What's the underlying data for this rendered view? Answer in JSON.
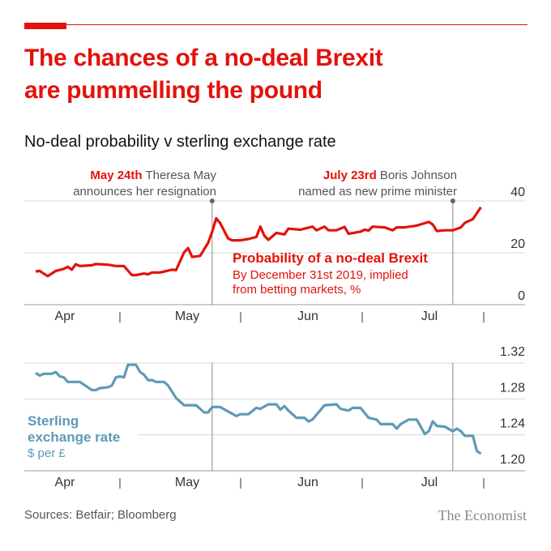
{
  "header": {
    "title_line1": "The chances of a no-deal Brexit",
    "title_line2": "are pummelling the pound",
    "subtitle": "No-deal probability v sterling exchange rate"
  },
  "footer": {
    "source": "Sources: Betfair; Bloomberg",
    "logo": "The Economist"
  },
  "colors": {
    "accent": "#e3120b",
    "sterling": "#5e9ab7",
    "grid": "#d9d9d9"
  },
  "annotations": [
    {
      "date": "2019-05-24",
      "bold": "May 24th",
      "line1": " Theresa May",
      "line2": "announces her resignation"
    },
    {
      "date": "2019-07-23",
      "bold": "July 23rd",
      "line1": " Boris Johnson",
      "line2": "named as new prime minister"
    }
  ],
  "chart_data": [
    {
      "type": "line",
      "title": "Probability of a no-deal Brexit",
      "subtitle_line1": "By December 31st 2019, implied",
      "subtitle_line2": "from betting markets, %",
      "ylim": [
        0,
        40
      ],
      "yticks": [
        "0",
        "20",
        "40"
      ],
      "xticks": [
        "Apr",
        "May",
        "Jun",
        "Jul"
      ],
      "grid": true,
      "color": "#e3120b",
      "x": [
        "2019-04-10",
        "2019-04-11",
        "2019-04-13",
        "2019-04-15",
        "2019-04-17",
        "2019-04-18",
        "2019-04-19",
        "2019-04-20",
        "2019-04-21",
        "2019-04-24",
        "2019-04-25",
        "2019-04-28",
        "2019-04-30",
        "2019-05-02",
        "2019-05-04",
        "2019-05-05",
        "2019-05-07",
        "2019-05-08",
        "2019-05-09",
        "2019-05-11",
        "2019-05-14",
        "2019-05-15",
        "2019-05-17",
        "2019-05-18",
        "2019-05-19",
        "2019-05-21",
        "2019-05-23",
        "2019-05-24",
        "2019-05-25",
        "2019-05-26",
        "2019-05-28",
        "2019-05-29",
        "2019-05-31",
        "2019-06-02",
        "2019-06-04",
        "2019-06-05",
        "2019-06-06",
        "2019-06-07",
        "2019-06-09",
        "2019-06-11",
        "2019-06-12",
        "2019-06-15",
        "2019-06-16",
        "2019-06-18",
        "2019-06-19",
        "2019-06-21",
        "2019-06-22",
        "2019-06-24",
        "2019-06-26",
        "2019-06-27",
        "2019-06-30",
        "2019-07-01",
        "2019-07-02",
        "2019-07-03",
        "2019-07-06",
        "2019-07-08",
        "2019-07-09",
        "2019-07-11",
        "2019-07-14",
        "2019-07-17",
        "2019-07-18",
        "2019-07-19",
        "2019-07-21",
        "2019-07-23",
        "2019-07-25",
        "2019-07-26",
        "2019-07-28",
        "2019-07-30"
      ],
      "values": [
        12.8,
        13,
        11,
        13,
        13.8,
        14.6,
        13.5,
        15.6,
        14.9,
        15.2,
        15.7,
        15.4,
        14.9,
        14.9,
        11.4,
        11.4,
        12,
        11.7,
        12.4,
        12.4,
        13.5,
        13.3,
        20.2,
        21.8,
        18.4,
        18.8,
        23.9,
        28.2,
        33.3,
        31.4,
        25.5,
        24.8,
        24.8,
        25.3,
        26.1,
        30.1,
        26.6,
        25,
        27.7,
        27.1,
        29.3,
        28.9,
        29.3,
        30.1,
        28.7,
        30.1,
        28.7,
        28.7,
        30,
        27.3,
        28.2,
        28.9,
        28.6,
        30.1,
        29.8,
        28.7,
        29.8,
        29.8,
        30.5,
        31.9,
        30.9,
        28.4,
        28.7,
        28.7,
        29.8,
        31.6,
        33,
        37.6
      ]
    },
    {
      "type": "line",
      "title": "Sterling exchange rate",
      "title_line1": "Sterling",
      "title_line2": "exchange rate",
      "unit": "$ per £",
      "ylim": [
        1.2,
        1.32
      ],
      "yticks": [
        "1.20",
        "1.24",
        "1.28",
        "1.32"
      ],
      "xticks": [
        "Apr",
        "May",
        "Jun",
        "Jul"
      ],
      "grid": true,
      "color": "#5e9ab7",
      "x": [
        "2019-04-10",
        "2019-04-11",
        "2019-04-12",
        "2019-04-14",
        "2019-04-15",
        "2019-04-16",
        "2019-04-17",
        "2019-04-18",
        "2019-04-21",
        "2019-04-22",
        "2019-04-24",
        "2019-04-25",
        "2019-04-26",
        "2019-04-28",
        "2019-04-29",
        "2019-04-30",
        "2019-05-01",
        "2019-05-02",
        "2019-05-03",
        "2019-05-05",
        "2019-05-06",
        "2019-05-07",
        "2019-05-08",
        "2019-05-09",
        "2019-05-10",
        "2019-05-12",
        "2019-05-13",
        "2019-05-15",
        "2019-05-17",
        "2019-05-20",
        "2019-05-22",
        "2019-05-23",
        "2019-05-24",
        "2019-05-26",
        "2019-05-28",
        "2019-05-30",
        "2019-05-31",
        "2019-06-02",
        "2019-06-04",
        "2019-06-05",
        "2019-06-07",
        "2019-06-09",
        "2019-06-10",
        "2019-06-11",
        "2019-06-12",
        "2019-06-14",
        "2019-06-16",
        "2019-06-17",
        "2019-06-18",
        "2019-06-21",
        "2019-06-24",
        "2019-06-25",
        "2019-06-27",
        "2019-06-28",
        "2019-06-30",
        "2019-07-02",
        "2019-07-04",
        "2019-07-05",
        "2019-07-08",
        "2019-07-09",
        "2019-07-10",
        "2019-07-12",
        "2019-07-14",
        "2019-07-15",
        "2019-07-16",
        "2019-07-17",
        "2019-07-18",
        "2019-07-19",
        "2019-07-21",
        "2019-07-23",
        "2019-07-24",
        "2019-07-25",
        "2019-07-26",
        "2019-07-28",
        "2019-07-29",
        "2019-07-30"
      ],
      "values": [
        1.309,
        1.306,
        1.308,
        1.308,
        1.31,
        1.305,
        1.304,
        1.299,
        1.299,
        1.296,
        1.29,
        1.29,
        1.292,
        1.293,
        1.295,
        1.304,
        1.305,
        1.304,
        1.318,
        1.318,
        1.31,
        1.307,
        1.301,
        1.301,
        1.299,
        1.299,
        1.295,
        1.281,
        1.273,
        1.273,
        1.265,
        1.265,
        1.271,
        1.271,
        1.266,
        1.261,
        1.263,
        1.263,
        1.27,
        1.269,
        1.274,
        1.274,
        1.268,
        1.272,
        1.267,
        1.259,
        1.259,
        1.255,
        1.257,
        1.273,
        1.274,
        1.269,
        1.267,
        1.27,
        1.27,
        1.259,
        1.257,
        1.252,
        1.252,
        1.247,
        1.252,
        1.257,
        1.257,
        1.249,
        1.241,
        1.244,
        1.255,
        1.25,
        1.249,
        1.244,
        1.247,
        1.244,
        1.239,
        1.239,
        1.222,
        1.219
      ]
    }
  ]
}
